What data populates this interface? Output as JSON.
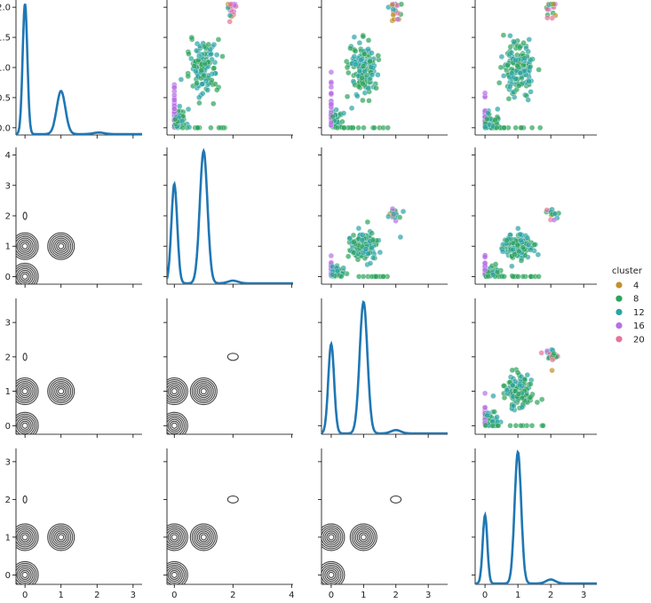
{
  "chart_data": {
    "type": "scatter",
    "title": "",
    "grid": false,
    "description_kind": "pairplot",
    "n_vars": 4,
    "diagonal": "kde",
    "upper": "scatter",
    "lower": "kde_contour",
    "legend": {
      "title": "cluster",
      "placement": "right",
      "entries": [
        {
          "label": "4",
          "color": "#c0922a"
        },
        {
          "label": "8",
          "color": "#2ca35a"
        },
        {
          "label": "12",
          "color": "#2ba3a5"
        },
        {
          "label": "16",
          "color": "#b86fe6"
        },
        {
          "label": "20",
          "color": "#e7729a"
        }
      ]
    },
    "axes": {
      "x": [
        {
          "range": [
            -0.25,
            3.25
          ],
          "ticks": [
            "0",
            "1",
            "2",
            "3"
          ]
        },
        {
          "range": [
            -0.25,
            4.05
          ],
          "ticks": [
            "0",
            "2",
            "4"
          ]
        },
        {
          "range": [
            -0.3,
            3.6
          ],
          "ticks": [
            "0",
            "1",
            "2",
            "3"
          ]
        },
        {
          "range": [
            -0.3,
            3.4
          ],
          "ticks": [
            "0",
            "1",
            "2",
            "3"
          ]
        }
      ],
      "y": [
        {
          "range": [
            -0.12,
            2.12
          ],
          "ticks": [
            "0.0",
            "0.5",
            "1.0",
            "1.5",
            "2.0"
          ]
        },
        {
          "range": [
            -0.25,
            4.25
          ],
          "ticks": [
            "0",
            "1",
            "2",
            "3",
            "4"
          ]
        },
        {
          "range": [
            -0.25,
            3.7
          ],
          "ticks": [
            "0",
            "1",
            "2",
            "3"
          ]
        },
        {
          "range": [
            -0.25,
            3.35
          ],
          "ticks": [
            "0",
            "1",
            "2",
            "3"
          ]
        }
      ]
    },
    "diag_kde": [
      {
        "peaks": [
          [
            0.0,
            0.065,
            1.0
          ],
          [
            1.0,
            0.12,
            0.33
          ],
          [
            2.05,
            0.15,
            0.012
          ]
        ]
      },
      {
        "peaks": [
          [
            0.0,
            0.1,
            0.75
          ],
          [
            1.0,
            0.13,
            1.0
          ],
          [
            2.0,
            0.17,
            0.02
          ]
        ]
      },
      {
        "peaks": [
          [
            0.0,
            0.09,
            0.68
          ],
          [
            1.0,
            0.12,
            1.0
          ],
          [
            2.0,
            0.15,
            0.025
          ]
        ]
      },
      {
        "peaks": [
          [
            0.0,
            0.07,
            0.52
          ],
          [
            1.0,
            0.1,
            1.0
          ],
          [
            2.0,
            0.14,
            0.03
          ]
        ]
      }
    ],
    "clusters": [
      {
        "label": "4",
        "centers": [
          [
            1.0,
            1.0
          ],
          [
            2.0,
            2.0
          ]
        ]
      },
      {
        "label": "8",
        "centers": [
          [
            0.0,
            0.0
          ],
          [
            1.0,
            1.0
          ]
        ]
      },
      {
        "label": "12",
        "centers": [
          [
            0.0,
            0.0
          ],
          [
            1.0,
            1.0
          ]
        ]
      },
      {
        "label": "16",
        "centers": [
          [
            0.0,
            1.0
          ],
          [
            2.0,
            2.0
          ]
        ]
      },
      {
        "label": "20",
        "centers": [
          [
            2.0,
            2.0
          ]
        ]
      }
    ],
    "kde_centers": [
      [
        0.0,
        0.0
      ],
      [
        0.0,
        1.0
      ],
      [
        1.0,
        1.0
      ],
      [
        2.0,
        2.0
      ]
    ]
  }
}
